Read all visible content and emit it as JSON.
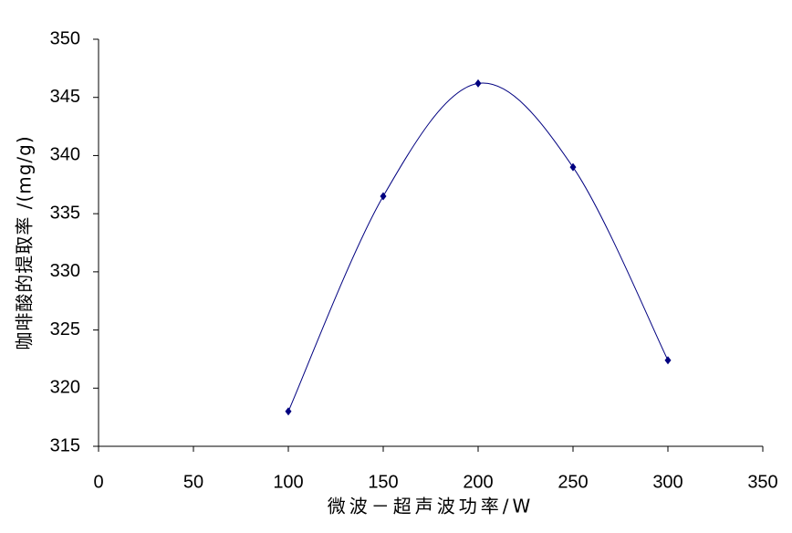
{
  "chart_data": {
    "type": "line",
    "smooth": true,
    "x_label": "微波－超声波功率/W",
    "y_label": "咖啡酸的提取率 /(mg/g)",
    "x": [
      100,
      150,
      200,
      250,
      300
    ],
    "series": [
      {
        "color": "#000080",
        "values": [
          318.0,
          336.5,
          346.2,
          339.0,
          322.4
        ]
      }
    ],
    "xlim": [
      0,
      350
    ],
    "xticks": [
      0,
      50,
      100,
      150,
      200,
      250,
      300,
      350
    ],
    "ylim": [
      315,
      350
    ],
    "yticks": [
      315,
      320,
      325,
      330,
      335,
      340,
      345,
      350
    ],
    "grid": false
  }
}
